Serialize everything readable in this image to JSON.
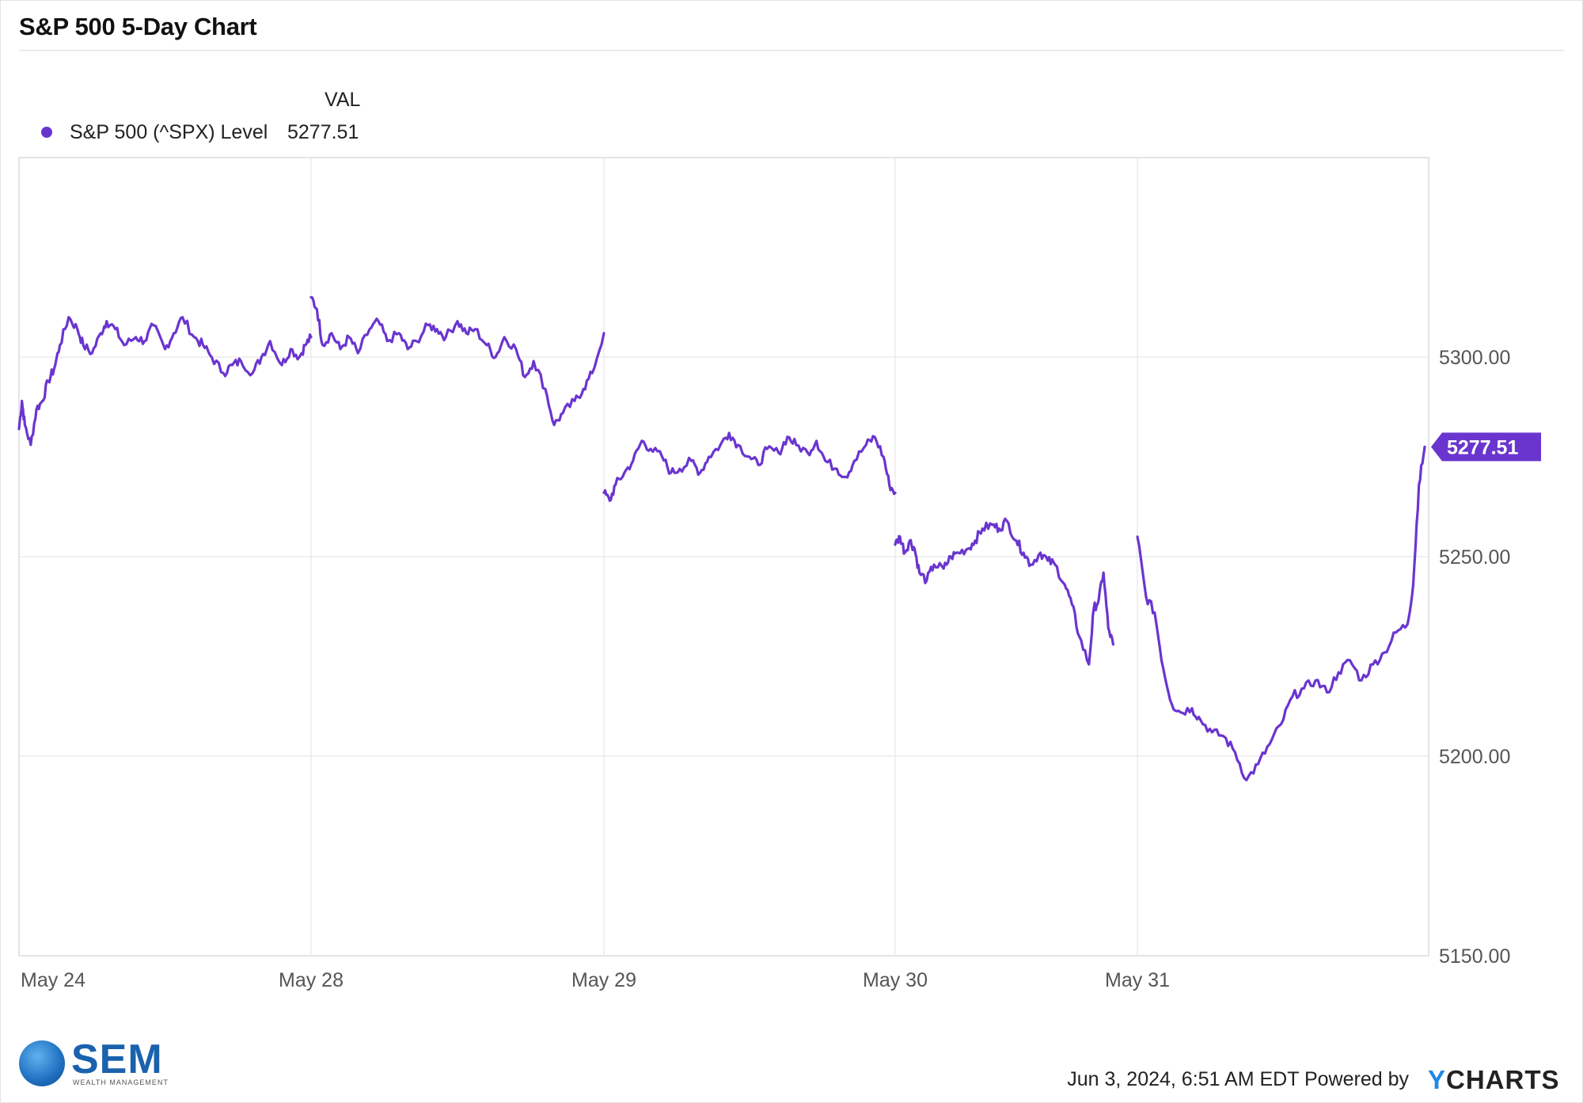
{
  "title": "S&P 500 5-Day Chart",
  "legend": {
    "header": "VAL",
    "series_name": "S&P 500 (^SPX) Level",
    "series_value": "5277.51"
  },
  "colors": {
    "series": "#6a35cf",
    "grid": "#e6e6e6",
    "axis_text": "#555555",
    "brand": "#1b62ad",
    "ycharts_y": "#1e88e5"
  },
  "footer": {
    "timestamp": "Jun 3, 2024, 6:51 AM EDT Powered by",
    "powered_brand_y": "Y",
    "powered_brand_rest": "CHARTS"
  },
  "logo": {
    "word": "SEM",
    "sub": "WEALTH MANAGEMENT"
  },
  "chart_data": {
    "type": "line",
    "title": "S&P 500 5-Day Chart",
    "xlabel": "",
    "ylabel": "",
    "ylim": [
      5150,
      5350
    ],
    "yticks": [
      "5300.00",
      "5250.00",
      "5200.00",
      "5150.00"
    ],
    "ytick_values": [
      5300,
      5250,
      5200,
      5150
    ],
    "xticks": [
      "May 24",
      "May 28",
      "May 29",
      "May 30",
      "May 31"
    ],
    "xtick_positions": [
      0,
      1,
      2,
      3,
      4
    ],
    "last_value_label": "5277.51",
    "grid": true,
    "legend_position": "top-left",
    "series": [
      {
        "name": "S&P 500 (^SPX) Level",
        "segments": [
          {
            "x": [
              0.0,
              0.01,
              0.02,
              0.04,
              0.06,
              0.08,
              0.1,
              0.12,
              0.14,
              0.17,
              0.2,
              0.22,
              0.25,
              0.28,
              0.3,
              0.33,
              0.36,
              0.4,
              0.43,
              0.46,
              0.5,
              0.53,
              0.56,
              0.6,
              0.63,
              0.66,
              0.7,
              0.73,
              0.76,
              0.8,
              0.83,
              0.86,
              0.9,
              0.93,
              0.96,
              0.98,
              1.0
            ],
            "y": [
              5282,
              5289,
              5283,
              5278,
              5287,
              5289,
              5294,
              5297,
              5303,
              5310,
              5307,
              5303,
              5301,
              5306,
              5309,
              5307,
              5303,
              5305,
              5304,
              5308,
              5302,
              5306,
              5310,
              5305,
              5303,
              5300,
              5296,
              5298,
              5299,
              5296,
              5300,
              5304,
              5298,
              5302,
              5300,
              5303,
              5305
            ]
          },
          {
            "x": [
              1.0,
              1.02,
              1.04,
              1.07,
              1.1,
              1.13,
              1.16,
              1.2,
              1.23,
              1.26,
              1.3,
              1.33,
              1.36,
              1.4,
              1.43,
              1.46,
              1.5,
              1.53,
              1.56,
              1.6,
              1.63,
              1.66,
              1.7,
              1.73,
              1.76,
              1.8,
              1.83,
              1.86,
              1.9,
              1.93,
              1.96,
              2.0
            ],
            "y": [
              5315,
              5312,
              5303,
              5306,
              5302,
              5305,
              5301,
              5307,
              5309,
              5304,
              5306,
              5302,
              5304,
              5308,
              5307,
              5305,
              5309,
              5306,
              5307,
              5303,
              5300,
              5305,
              5302,
              5295,
              5299,
              5292,
              5283,
              5286,
              5289,
              5292,
              5296,
              5306
            ]
          },
          {
            "x": [
              2.0,
              2.02,
              2.04,
              2.07,
              2.1,
              2.13,
              2.16,
              2.2,
              2.23,
              2.26,
              2.3,
              2.33,
              2.36,
              2.4,
              2.43,
              2.46,
              2.5,
              2.53,
              2.56,
              2.6,
              2.63,
              2.66,
              2.7,
              2.73,
              2.76,
              2.8,
              2.83,
              2.86,
              2.9,
              2.93,
              2.96,
              2.98,
              3.0
            ],
            "y": [
              5266,
              5264,
              5268,
              5271,
              5274,
              5279,
              5277,
              5275,
              5271,
              5272,
              5274,
              5271,
              5275,
              5278,
              5281,
              5278,
              5275,
              5273,
              5277,
              5276,
              5280,
              5278,
              5276,
              5279,
              5274,
              5272,
              5270,
              5274,
              5278,
              5280,
              5275,
              5268,
              5266
            ]
          },
          {
            "x": [
              3.0,
              3.02,
              3.04,
              3.06,
              3.08,
              3.1,
              3.13,
              3.16,
              3.2,
              3.23,
              3.26,
              3.3,
              3.33,
              3.36,
              3.4,
              3.43,
              3.46,
              3.5,
              3.53,
              3.56,
              3.6,
              3.63,
              3.66,
              3.7,
              3.73,
              3.76,
              3.8,
              3.82,
              3.84,
              3.86,
              3.88,
              3.9
            ],
            "y": [
              5253,
              5255,
              5251,
              5254,
              5252,
              5246,
              5244,
              5248,
              5247,
              5250,
              5251,
              5252,
              5254,
              5257,
              5258,
              5257,
              5259,
              5254,
              5251,
              5248,
              5251,
              5249,
              5248,
              5243,
              5238,
              5230,
              5223,
              5237,
              5239,
              5246,
              5232,
              5228
            ]
          },
          {
            "x": [
              4.0,
              4.03,
              4.06,
              4.09,
              4.12,
              4.15,
              4.19,
              4.22,
              4.26,
              4.3,
              4.34,
              4.38,
              4.42,
              4.46,
              4.5,
              4.54,
              4.58,
              4.62,
              4.66,
              4.7,
              4.74,
              4.78,
              4.82,
              4.86,
              4.9,
              4.94,
              4.96,
              4.98,
              5.0
            ],
            "y": [
              5255,
              5240,
              5236,
              5222,
              5213,
              5211,
              5212,
              5209,
              5206,
              5205,
              5201,
              5194,
              5198,
              5203,
              5208,
              5215,
              5217,
              5219,
              5216,
              5221,
              5224,
              5219,
              5223,
              5226,
              5231,
              5233,
              5243,
              5268,
              5277.51
            ]
          }
        ]
      }
    ]
  }
}
